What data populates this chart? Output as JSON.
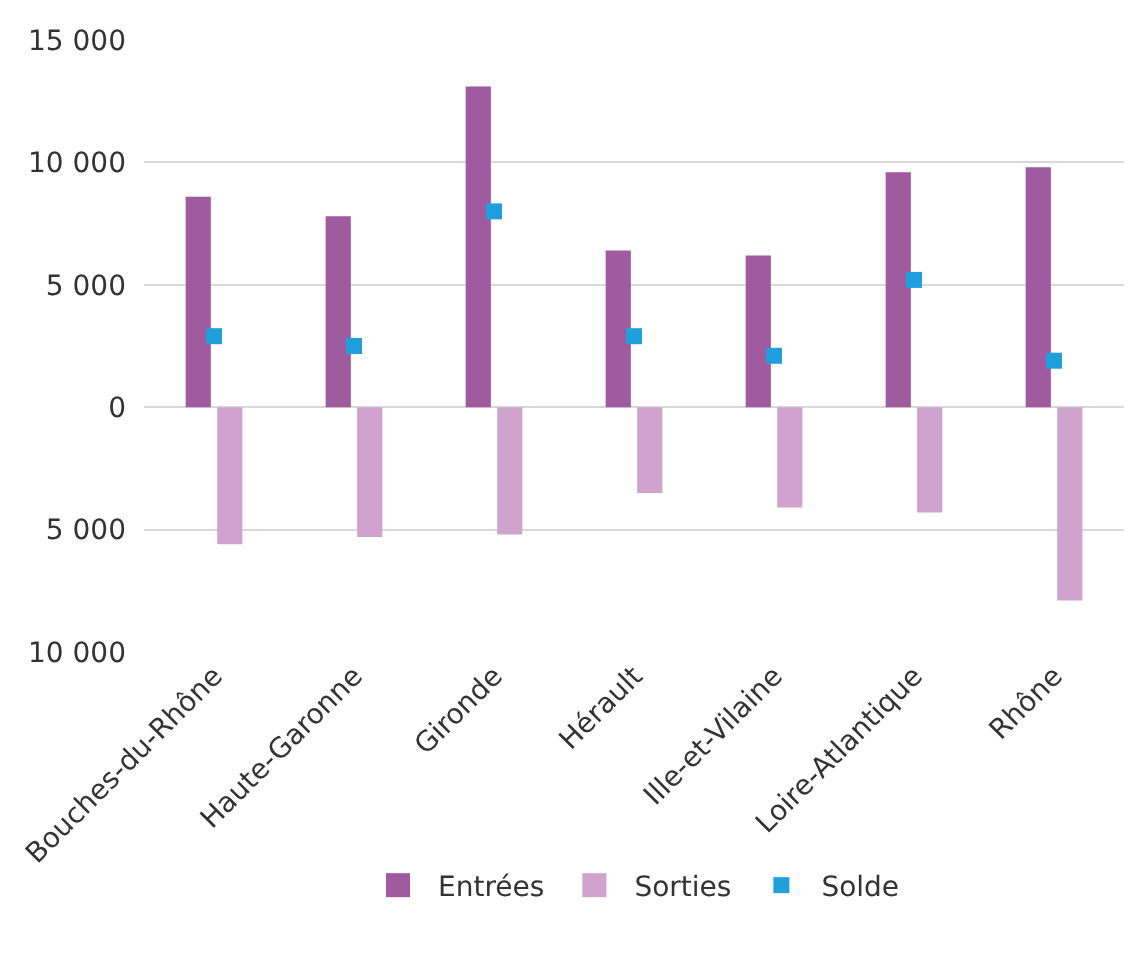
{
  "chart_data": {
    "type": "bar",
    "categories": [
      "Bouches-du-Rhône",
      "Haute-Garonne",
      "Gironde",
      "Hérault",
      "Ille-et-Vilaine",
      "Loire-Atlantique",
      "Rhône"
    ],
    "series": [
      {
        "name": "Entrées",
        "color": "#a05a9f",
        "values": [
          8600,
          7800,
          13100,
          6400,
          6200,
          9600,
          9800
        ]
      },
      {
        "name": "Sorties",
        "color": "#cfa3cd",
        "values": [
          -5600,
          -5300,
          -5200,
          -3500,
          -4100,
          -4300,
          -7900
        ]
      },
      {
        "name": "Solde",
        "type": "scatter",
        "color": "#1fa0dc",
        "values": [
          2900,
          2500,
          8000,
          2900,
          2100,
          5200,
          1900
        ]
      }
    ],
    "ylim": [
      -10000,
      15000
    ],
    "yticks": [
      {
        "value": -10000,
        "label": "10 000"
      },
      {
        "value": -5000,
        "label": "5 000"
      },
      0,
      {
        "value": 5000,
        "label": "5 000"
      },
      {
        "value": 10000,
        "label": "10 000"
      },
      {
        "value": 15000,
        "label": "15 000"
      }
    ],
    "grid": "y",
    "legend": "bottom"
  }
}
